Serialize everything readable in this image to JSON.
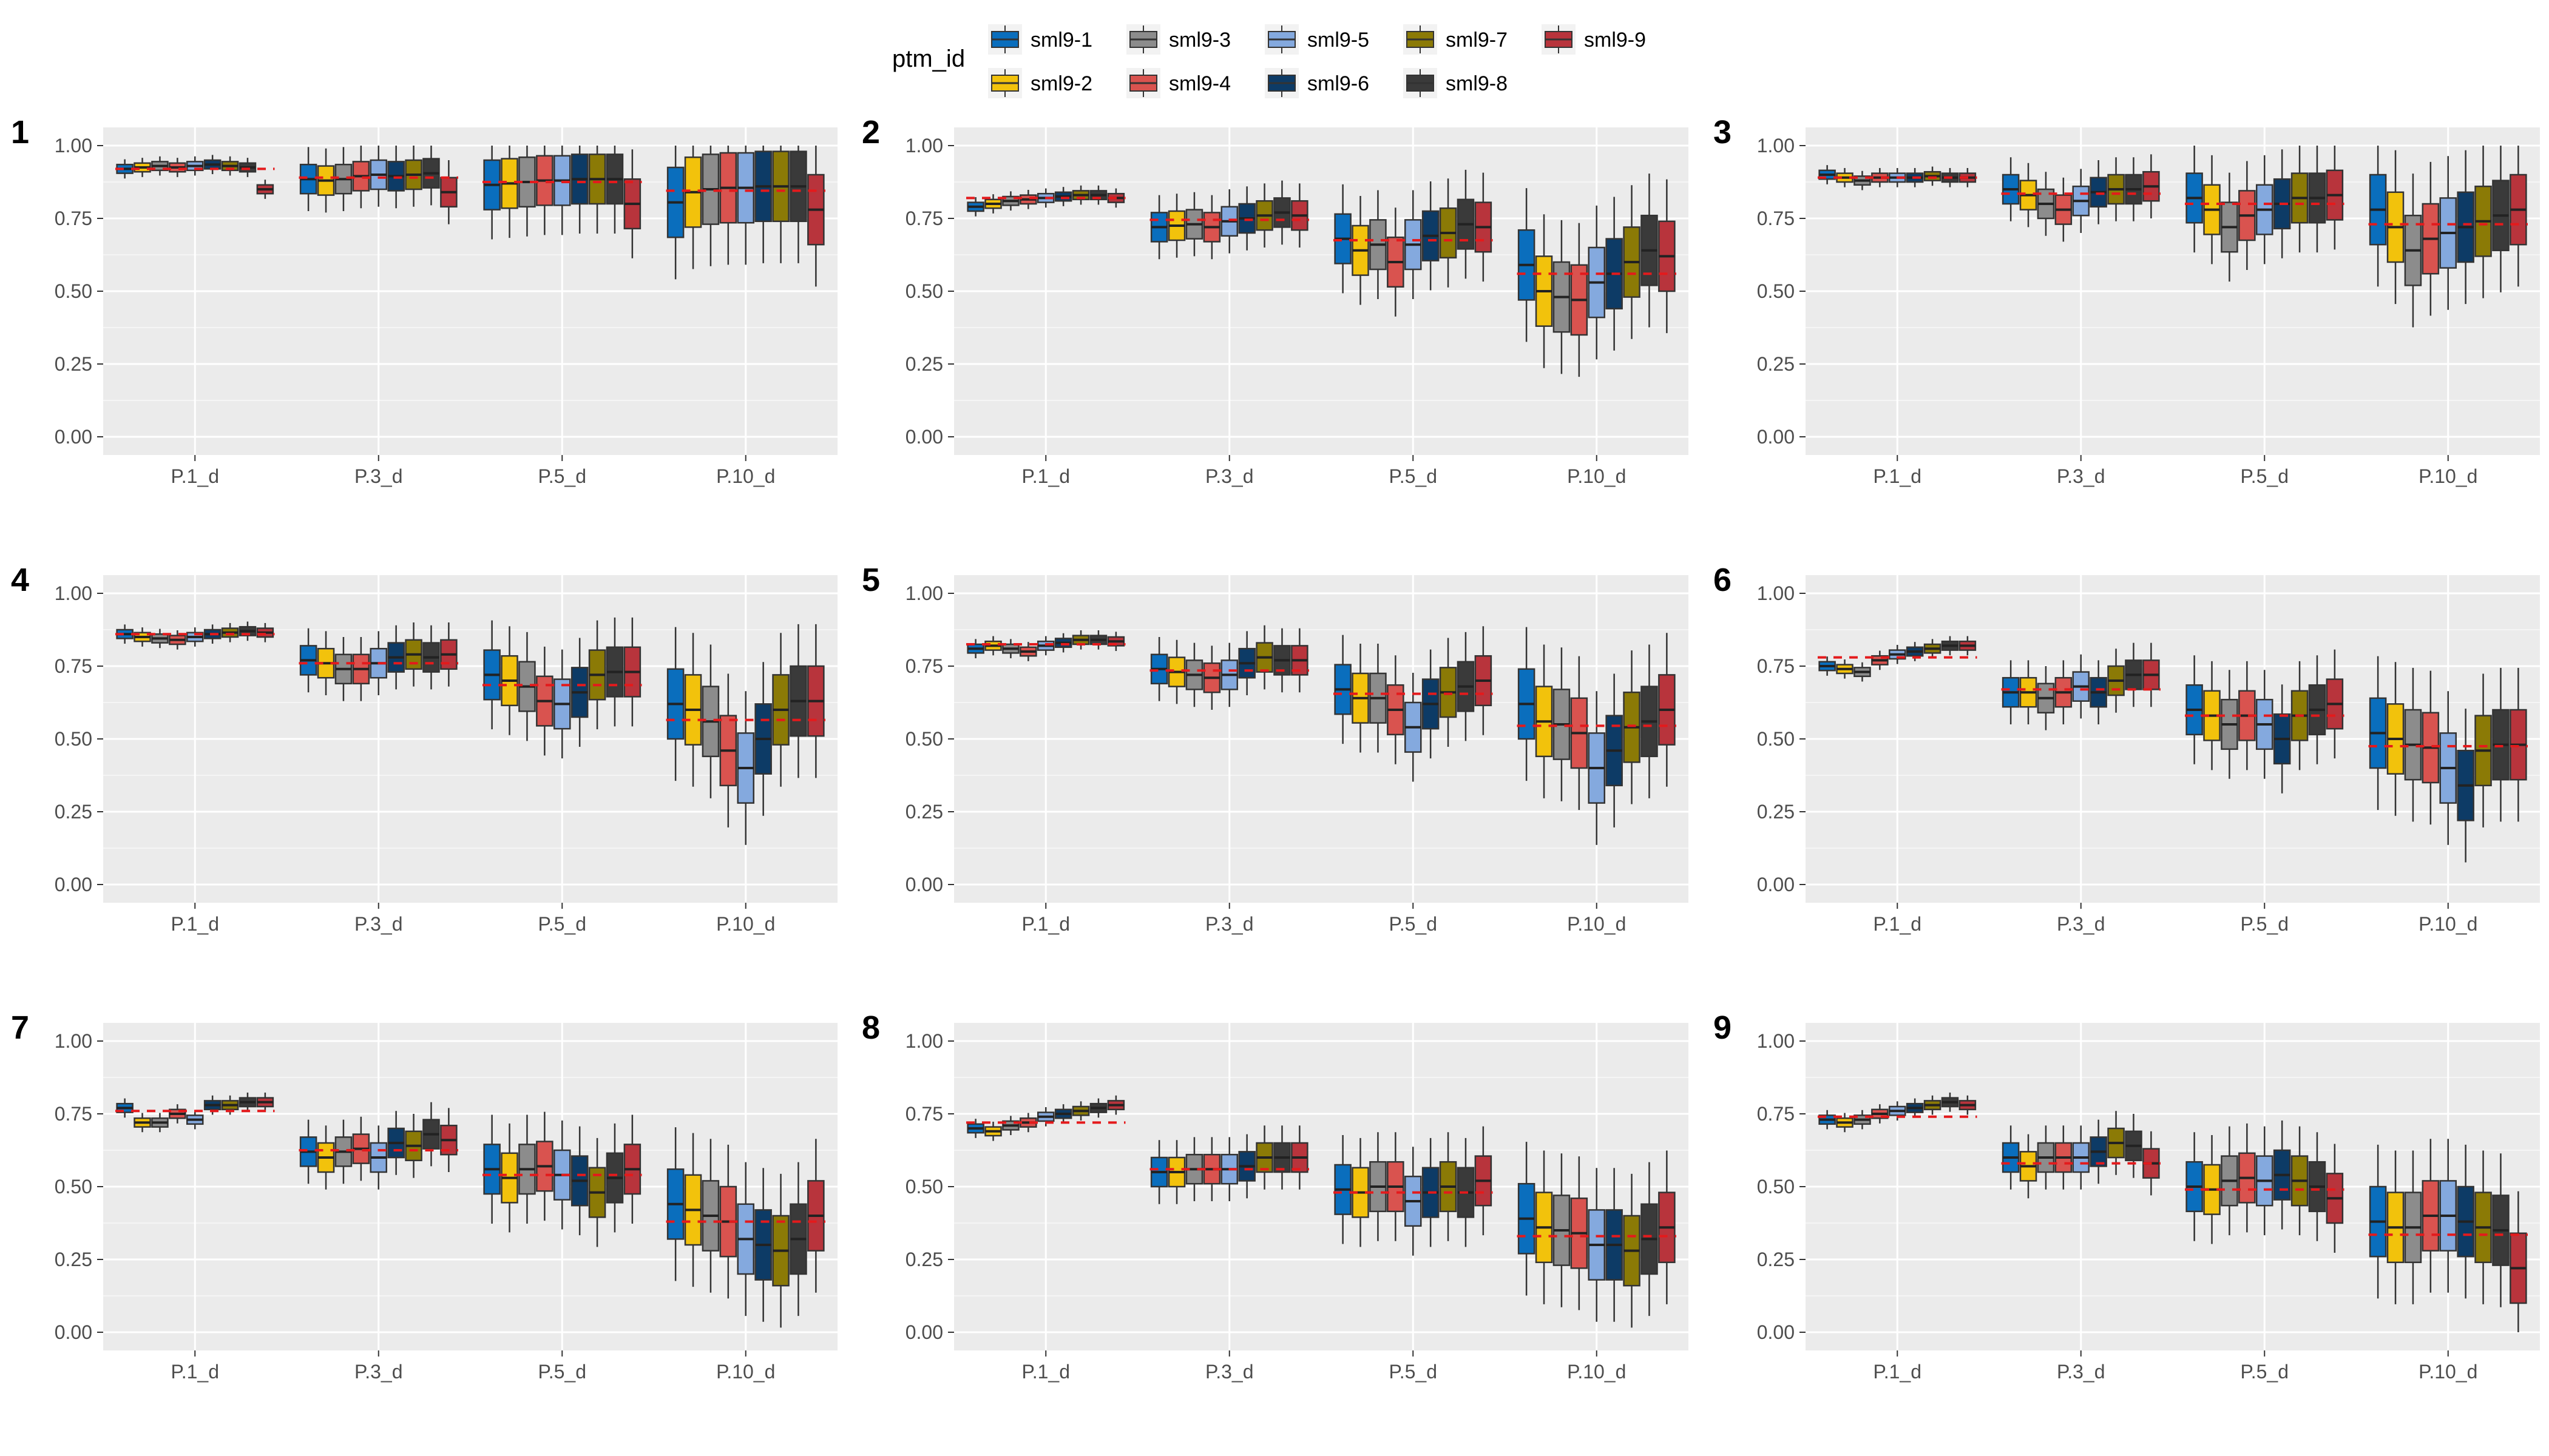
{
  "legend": {
    "title": "ptm_id",
    "items": [
      {
        "name": "sml9-1",
        "color": "#0A6EBD"
      },
      {
        "name": "sml9-2",
        "color": "#F2C20C"
      },
      {
        "name": "sml9-3",
        "color": "#8C8C8C"
      },
      {
        "name": "sml9-4",
        "color": "#D9534F"
      },
      {
        "name": "sml9-5",
        "color": "#84A9DE"
      },
      {
        "name": "sml9-6",
        "color": "#0D3B66"
      },
      {
        "name": "sml9-7",
        "color": "#8B7A06"
      },
      {
        "name": "sml9-8",
        "color": "#3A3A3A"
      },
      {
        "name": "sml9-9",
        "color": "#B8343C"
      }
    ]
  },
  "chart_data": {
    "type": "box",
    "categories": [
      "P.1_d",
      "P.3_d",
      "P.5_d",
      "P.10_d"
    ],
    "yticks": [
      "0.00",
      "0.25",
      "0.50",
      "0.75",
      "1.00"
    ],
    "ylim": [
      0,
      1
    ],
    "reference_line": {
      "style": "dashed",
      "color": "#E41A1C"
    },
    "panels": [
      {
        "label": "1",
        "reference": [
          0.92,
          0.89,
          0.875,
          0.845
        ],
        "medians": [
          [
            0.92,
            0.925,
            0.93,
            0.925,
            0.93,
            0.935,
            0.93,
            0.925,
            0.85
          ],
          [
            0.885,
            0.88,
            0.885,
            0.895,
            0.9,
            0.895,
            0.9,
            0.905,
            0.84
          ],
          [
            0.865,
            0.87,
            0.875,
            0.88,
            0.88,
            0.885,
            0.885,
            0.885,
            0.8
          ],
          [
            0.805,
            0.84,
            0.85,
            0.855,
            0.855,
            0.86,
            0.86,
            0.86,
            0.78
          ]
        ]
      },
      {
        "label": "2",
        "reference": [
          0.82,
          0.745,
          0.675,
          0.56
        ],
        "medians": [
          [
            0.79,
            0.8,
            0.81,
            0.815,
            0.82,
            0.825,
            0.83,
            0.83,
            0.82
          ],
          [
            0.72,
            0.725,
            0.73,
            0.72,
            0.74,
            0.75,
            0.76,
            0.77,
            0.76
          ],
          [
            0.68,
            0.64,
            0.66,
            0.6,
            0.66,
            0.69,
            0.7,
            0.73,
            0.72
          ],
          [
            0.59,
            0.5,
            0.48,
            0.47,
            0.53,
            0.56,
            0.6,
            0.64,
            0.62
          ]
        ]
      },
      {
        "label": "3",
        "reference": [
          0.89,
          0.835,
          0.8,
          0.73
        ],
        "medians": [
          [
            0.9,
            0.89,
            0.88,
            0.89,
            0.89,
            0.89,
            0.895,
            0.89,
            0.89
          ],
          [
            0.85,
            0.83,
            0.8,
            0.78,
            0.81,
            0.84,
            0.85,
            0.85,
            0.86
          ],
          [
            0.82,
            0.78,
            0.72,
            0.76,
            0.78,
            0.8,
            0.82,
            0.82,
            0.83
          ],
          [
            0.78,
            0.72,
            0.64,
            0.68,
            0.7,
            0.72,
            0.74,
            0.76,
            0.78
          ]
        ]
      },
      {
        "label": "4",
        "reference": [
          0.86,
          0.76,
          0.685,
          0.565
        ],
        "medians": [
          [
            0.86,
            0.85,
            0.845,
            0.84,
            0.85,
            0.86,
            0.865,
            0.87,
            0.865
          ],
          [
            0.77,
            0.76,
            0.74,
            0.74,
            0.76,
            0.78,
            0.79,
            0.78,
            0.79
          ],
          [
            0.72,
            0.7,
            0.68,
            0.63,
            0.62,
            0.66,
            0.72,
            0.73,
            0.73
          ],
          [
            0.62,
            0.6,
            0.56,
            0.46,
            0.4,
            0.5,
            0.6,
            0.63,
            0.63
          ]
        ]
      },
      {
        "label": "5",
        "reference": [
          0.825,
          0.735,
          0.655,
          0.545
        ],
        "medians": [
          [
            0.81,
            0.82,
            0.81,
            0.8,
            0.82,
            0.83,
            0.84,
            0.84,
            0.835
          ],
          [
            0.74,
            0.73,
            0.72,
            0.71,
            0.72,
            0.76,
            0.78,
            0.77,
            0.77
          ],
          [
            0.67,
            0.64,
            0.64,
            0.6,
            0.54,
            0.62,
            0.66,
            0.68,
            0.7
          ],
          [
            0.62,
            0.56,
            0.55,
            0.52,
            0.4,
            0.46,
            0.54,
            0.56,
            0.6
          ]
        ]
      },
      {
        "label": "6",
        "reference": [
          0.78,
          0.67,
          0.58,
          0.475
        ],
        "medians": [
          [
            0.75,
            0.74,
            0.73,
            0.77,
            0.79,
            0.8,
            0.81,
            0.82,
            0.82
          ],
          [
            0.66,
            0.66,
            0.64,
            0.66,
            0.68,
            0.66,
            0.7,
            0.72,
            0.72
          ],
          [
            0.6,
            0.58,
            0.55,
            0.58,
            0.55,
            0.5,
            0.58,
            0.6,
            0.62
          ],
          [
            0.52,
            0.5,
            0.48,
            0.47,
            0.4,
            0.34,
            0.46,
            0.48,
            0.48
          ]
        ]
      },
      {
        "label": "7",
        "reference": [
          0.76,
          0.625,
          0.54,
          0.38
        ],
        "medians": [
          [
            0.77,
            0.72,
            0.72,
            0.75,
            0.73,
            0.78,
            0.78,
            0.79,
            0.79
          ],
          [
            0.62,
            0.6,
            0.62,
            0.63,
            0.6,
            0.65,
            0.64,
            0.68,
            0.66
          ],
          [
            0.56,
            0.53,
            0.56,
            0.57,
            0.54,
            0.52,
            0.48,
            0.53,
            0.56
          ],
          [
            0.44,
            0.42,
            0.4,
            0.38,
            0.32,
            0.3,
            0.28,
            0.32,
            0.4
          ]
        ]
      },
      {
        "label": "8",
        "reference": [
          0.72,
          0.56,
          0.48,
          0.33
        ],
        "medians": [
          [
            0.7,
            0.69,
            0.71,
            0.72,
            0.74,
            0.75,
            0.76,
            0.77,
            0.78
          ],
          [
            0.55,
            0.55,
            0.56,
            0.56,
            0.56,
            0.57,
            0.6,
            0.6,
            0.6
          ],
          [
            0.49,
            0.48,
            0.5,
            0.5,
            0.45,
            0.48,
            0.5,
            0.48,
            0.52
          ],
          [
            0.39,
            0.36,
            0.35,
            0.34,
            0.3,
            0.3,
            0.28,
            0.32,
            0.36
          ]
        ]
      },
      {
        "label": "9",
        "reference": [
          0.74,
          0.58,
          0.49,
          0.335
        ],
        "medians": [
          [
            0.73,
            0.72,
            0.73,
            0.75,
            0.76,
            0.77,
            0.78,
            0.79,
            0.78
          ],
          [
            0.6,
            0.57,
            0.6,
            0.6,
            0.6,
            0.62,
            0.65,
            0.64,
            0.58
          ],
          [
            0.5,
            0.49,
            0.52,
            0.53,
            0.52,
            0.54,
            0.52,
            0.5,
            0.46
          ],
          [
            0.38,
            0.36,
            0.36,
            0.4,
            0.4,
            0.38,
            0.36,
            0.35,
            0.22
          ]
        ]
      }
    ]
  }
}
